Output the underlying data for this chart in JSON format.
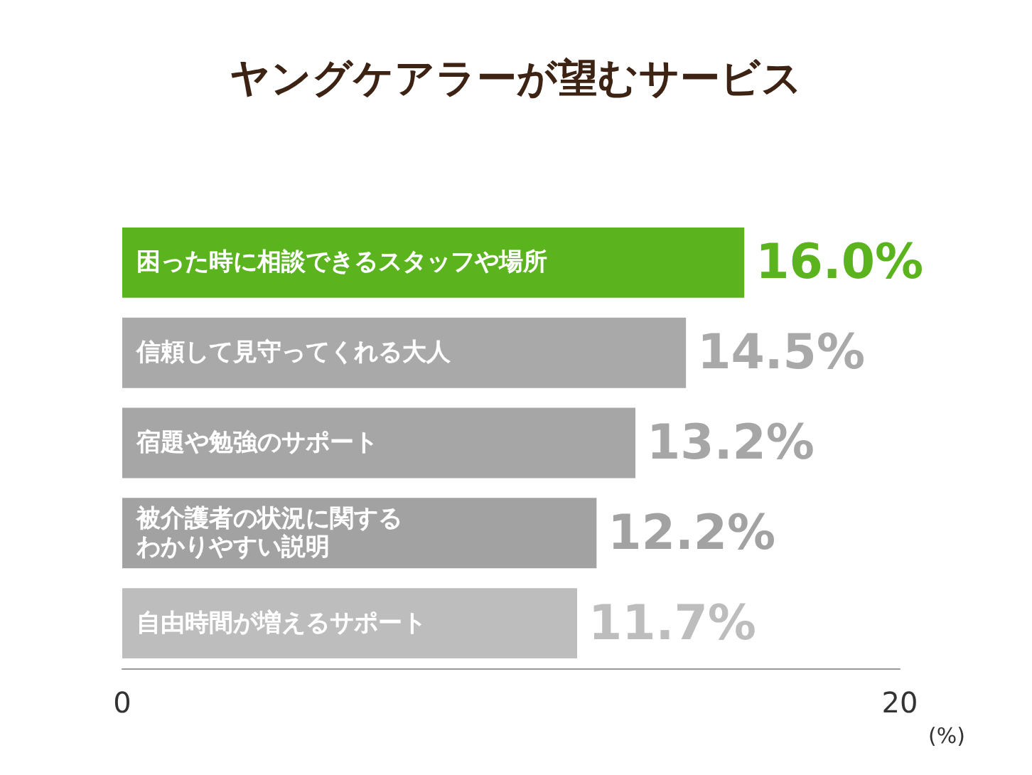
{
  "chart_data": {
    "type": "bar",
    "orientation": "horizontal",
    "title": "ヤングケアラーが望むサービス",
    "categories": [
      "困った時に相談できるスタッフや場所",
      "信頼して見守ってくれる大人",
      "宿題や勉強のサポート",
      "被介護者の状況に関するわかりやすい説明",
      "自由時間が増えるサポート"
    ],
    "values": [
      16.0,
      14.5,
      13.2,
      12.2,
      11.7
    ],
    "colors": [
      "#5bb31e",
      "#a9a9a9",
      "#a6a6a6",
      "#a2a2a2",
      "#bdbdbd"
    ],
    "value_labels": [
      "16.0%",
      "14.5%",
      "13.2%",
      "12.2%",
      "11.7%"
    ],
    "xlabel": "(%)",
    "xlim": [
      0,
      20
    ],
    "xticks": [
      0,
      20
    ],
    "grid": false
  }
}
